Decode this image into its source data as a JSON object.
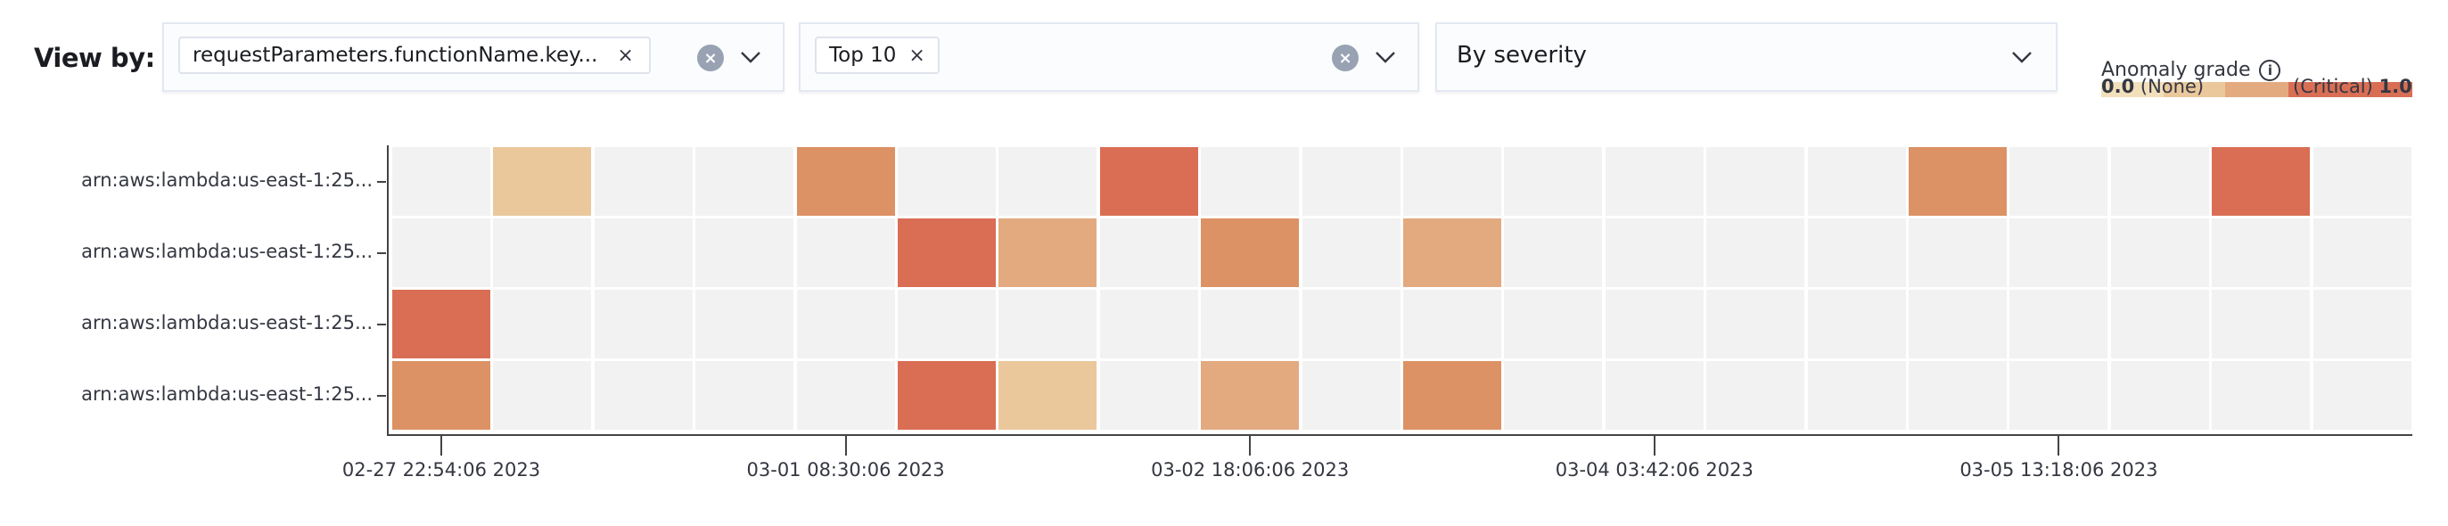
{
  "controls": {
    "view_by_label": "View by:",
    "field_select": {
      "chip": "requestParameters.functionName.key...",
      "chip_remove": "×",
      "clear": "×"
    },
    "limit_select": {
      "chip": "Top 10",
      "chip_remove": "×",
      "clear": "×"
    },
    "sort_select": {
      "value": "By severity"
    }
  },
  "legend": {
    "title": "Anomaly grade",
    "min_value": "0.0",
    "min_label": "(None)",
    "max_label": "(Critical)",
    "max_value": "1.0",
    "colors": [
      "#f2e0bc",
      "#ebc89c",
      "#e3aa80",
      "#dc9265",
      "#d96e55"
    ]
  },
  "chart_data": {
    "type": "heatmap",
    "rows": [
      "arn:aws:lambda:us-east-1:25...",
      "arn:aws:lambda:us-east-1:25...",
      "arn:aws:lambda:us-east-1:25...",
      "arn:aws:lambda:us-east-1:25..."
    ],
    "column_count": 20,
    "x_ticks": [
      {
        "column": 0,
        "label": "02-27 22:54:06 2023"
      },
      {
        "column": 4,
        "label": "03-01 08:30:06 2023"
      },
      {
        "column": 8,
        "label": "03-02 18:06:06 2023"
      },
      {
        "column": 12,
        "label": "03-04 03:42:06 2023"
      },
      {
        "column": 16,
        "label": "03-05 13:18:06 2023"
      }
    ],
    "empty_color": "#f2f2f2",
    "cells": [
      {
        "row": 0,
        "column": 1,
        "grade": 0.2
      },
      {
        "row": 0,
        "column": 4,
        "grade": 0.75
      },
      {
        "row": 0,
        "column": 7,
        "grade": 0.95
      },
      {
        "row": 0,
        "column": 15,
        "grade": 0.6
      },
      {
        "row": 0,
        "column": 18,
        "grade": 0.95
      },
      {
        "row": 1,
        "column": 5,
        "grade": 0.95
      },
      {
        "row": 1,
        "column": 6,
        "grade": 0.4
      },
      {
        "row": 1,
        "column": 8,
        "grade": 0.6
      },
      {
        "row": 1,
        "column": 10,
        "grade": 0.4
      },
      {
        "row": 2,
        "column": 0,
        "grade": 0.95
      },
      {
        "row": 3,
        "column": 0,
        "grade": 0.6
      },
      {
        "row": 3,
        "column": 5,
        "grade": 0.95
      },
      {
        "row": 3,
        "column": 6,
        "grade": 0.2
      },
      {
        "row": 3,
        "column": 8,
        "grade": 0.4
      },
      {
        "row": 3,
        "column": 10,
        "grade": 0.6
      }
    ]
  }
}
